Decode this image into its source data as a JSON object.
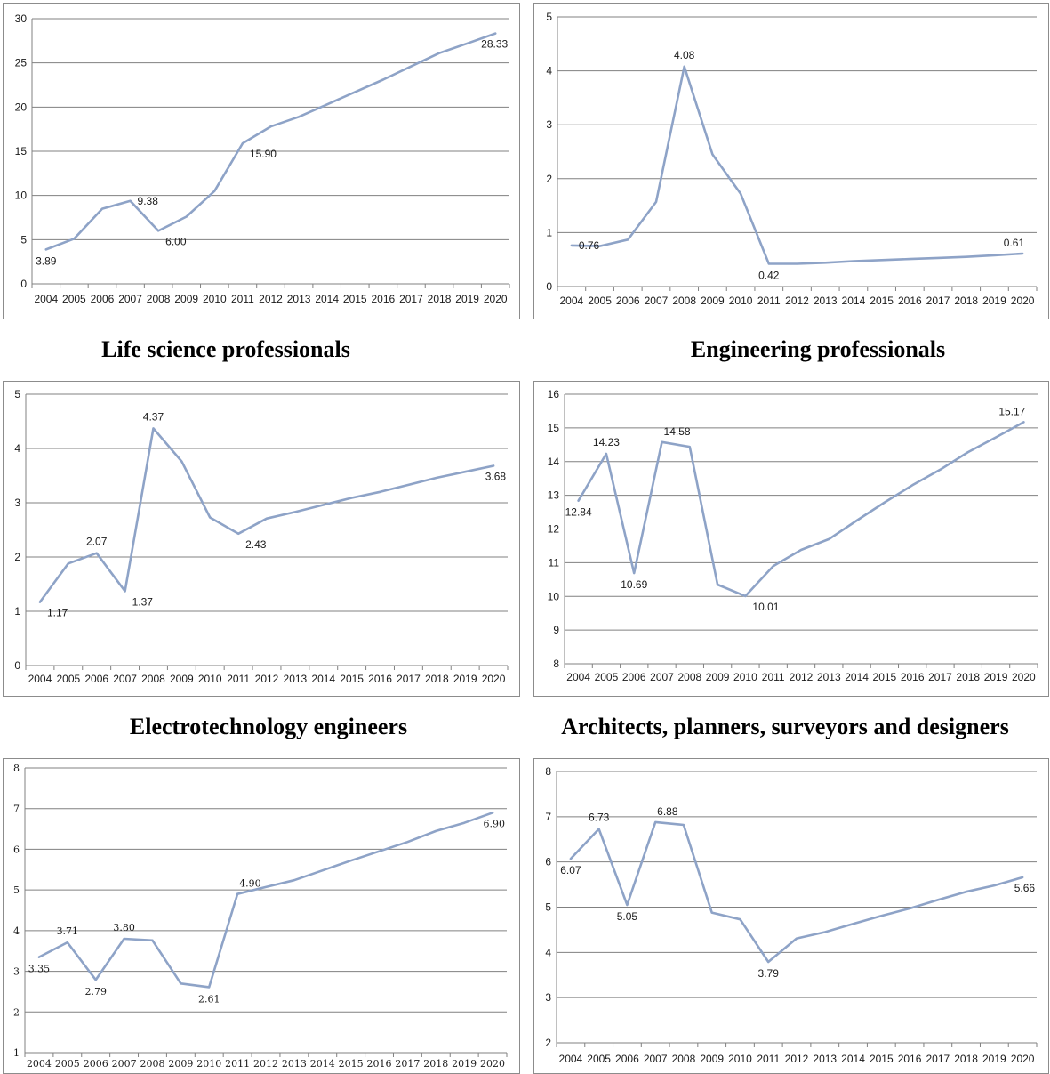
{
  "colors": {
    "line": "#8ea3c7",
    "grid": "#808080",
    "axis": "#808080",
    "border": "#8c8c8c"
  },
  "chart_data": [
    {
      "type": "line",
      "title": "Life science professionals",
      "x": [
        "2004",
        "2005",
        "2006",
        "2007",
        "2008",
        "2009",
        "2010",
        "2011",
        "2012",
        "2013",
        "2014",
        "2015",
        "2016",
        "2017",
        "2018",
        "2019",
        "2020"
      ],
      "series": [
        {
          "values": [
            3.89,
            5.1,
            8.5,
            9.38,
            6.0,
            7.6,
            10.5,
            15.9,
            17.8,
            18.9,
            20.3,
            21.7,
            23.1,
            24.6,
            26.1,
            27.2,
            28.33
          ]
        }
      ],
      "ylim": [
        0,
        30
      ],
      "yticks": [
        0,
        5,
        10,
        15,
        20,
        25,
        30
      ],
      "labels": [
        {
          "i": 0,
          "text": "3.89",
          "pos": "below"
        },
        {
          "i": 3,
          "text": "9.38",
          "pos": "right"
        },
        {
          "i": 4,
          "text": "6.00",
          "pos": "belowright"
        },
        {
          "i": 7,
          "text": "15.90",
          "pos": "belowright"
        },
        {
          "i": 16,
          "text": "28.33",
          "pos": "belowleft"
        }
      ],
      "grid": true,
      "xlabel": "",
      "ylabel": ""
    },
    {
      "type": "line",
      "title": "Engineering professionals",
      "x": [
        "2004",
        "2005",
        "2006",
        "2007",
        "2008",
        "2009",
        "2010",
        "2011",
        "2012",
        "2013",
        "2014",
        "2015",
        "2016",
        "2017",
        "2018",
        "2019",
        "2020"
      ],
      "series": [
        {
          "values": [
            0.76,
            0.75,
            0.87,
            1.57,
            4.08,
            2.45,
            1.72,
            0.42,
            0.42,
            0.44,
            0.47,
            0.49,
            0.51,
            0.53,
            0.55,
            0.58,
            0.61
          ]
        }
      ],
      "ylim": [
        0,
        5
      ],
      "yticks": [
        0,
        1,
        2,
        3,
        4,
        5
      ],
      "labels": [
        {
          "i": 0,
          "text": "0.76",
          "pos": "right"
        },
        {
          "i": 4,
          "text": "4.08",
          "pos": "above"
        },
        {
          "i": 7,
          "text": "0.42",
          "pos": "below"
        },
        {
          "i": 16,
          "text": "0.61",
          "pos": "aboveleft"
        }
      ],
      "grid": true,
      "xlabel": "",
      "ylabel": ""
    },
    {
      "type": "line",
      "title": "Electrotechnology engineers",
      "x": [
        "2004",
        "2005",
        "2006",
        "2007",
        "2008",
        "2009",
        "2010",
        "2011",
        "2012",
        "2013",
        "2014",
        "2015",
        "2016",
        "2017",
        "2018",
        "2019",
        "2020"
      ],
      "series": [
        {
          "values": [
            1.17,
            1.88,
            2.07,
            1.37,
            4.37,
            3.76,
            2.73,
            2.43,
            2.71,
            2.83,
            2.96,
            3.09,
            3.2,
            3.33,
            3.46,
            3.57,
            3.68
          ]
        }
      ],
      "ylim": [
        0,
        5
      ],
      "yticks": [
        0,
        1,
        2,
        3,
        4,
        5
      ],
      "labels": [
        {
          "i": 0,
          "text": "1.17",
          "pos": "belowright"
        },
        {
          "i": 2,
          "text": "2.07",
          "pos": "above"
        },
        {
          "i": 3,
          "text": "1.37",
          "pos": "belowright"
        },
        {
          "i": 4,
          "text": "4.37",
          "pos": "above"
        },
        {
          "i": 7,
          "text": "2.43",
          "pos": "belowright"
        },
        {
          "i": 16,
          "text": "3.68",
          "pos": "belowleft"
        }
      ],
      "grid": true,
      "xlabel": "",
      "ylabel": ""
    },
    {
      "type": "line",
      "title": "Architects, planners, surveyors and designers",
      "x": [
        "2004",
        "2005",
        "2006",
        "2007",
        "2008",
        "2009",
        "2010",
        "2011",
        "2012",
        "2013",
        "2014",
        "2015",
        "2016",
        "2017",
        "2018",
        "2019",
        "2020"
      ],
      "series": [
        {
          "values": [
            12.84,
            14.23,
            10.69,
            14.58,
            14.44,
            10.35,
            10.01,
            10.9,
            11.38,
            11.7,
            12.25,
            12.79,
            13.3,
            13.76,
            14.28,
            14.72,
            15.17
          ]
        }
      ],
      "ylim": [
        8,
        16
      ],
      "yticks": [
        8,
        9,
        10,
        11,
        12,
        13,
        14,
        15,
        16
      ],
      "labels": [
        {
          "i": 0,
          "text": "12.84",
          "pos": "below"
        },
        {
          "i": 1,
          "text": "14.23",
          "pos": "above"
        },
        {
          "i": 2,
          "text": "10.69",
          "pos": "below"
        },
        {
          "i": 3,
          "text": "14.58",
          "pos": "aboveright"
        },
        {
          "i": 6,
          "text": "10.01",
          "pos": "belowright"
        },
        {
          "i": 16,
          "text": "15.17",
          "pos": "aboveleft"
        }
      ],
      "grid": true,
      "xlabel": "",
      "ylabel": ""
    },
    {
      "type": "line",
      "title": "",
      "x": [
        "2004",
        "2005",
        "2006",
        "2007",
        "2008",
        "2009",
        "2010",
        "2011",
        "2012",
        "2013",
        "2014",
        "2015",
        "2016",
        "2017",
        "2018",
        "2019",
        "2020"
      ],
      "series": [
        {
          "values": [
            3.35,
            3.71,
            2.79,
            3.8,
            3.76,
            2.7,
            2.61,
            4.9,
            5.07,
            5.24,
            5.48,
            5.72,
            5.95,
            6.18,
            6.45,
            6.65,
            6.9
          ]
        }
      ],
      "ylim": [
        1,
        8
      ],
      "yticks": [
        1,
        2,
        3,
        4,
        5,
        6,
        7,
        8
      ],
      "labels": [
        {
          "i": 0,
          "text": "3.35",
          "pos": "below"
        },
        {
          "i": 1,
          "text": "3.71",
          "pos": "above"
        },
        {
          "i": 2,
          "text": "2.79",
          "pos": "below"
        },
        {
          "i": 3,
          "text": "3.80",
          "pos": "above"
        },
        {
          "i": 6,
          "text": "2.61",
          "pos": "below"
        },
        {
          "i": 7,
          "text": "4.90",
          "pos": "aboveright"
        },
        {
          "i": 16,
          "text": "6.90",
          "pos": "belowleft"
        }
      ],
      "grid": true,
      "xlabel": "",
      "ylabel": ""
    },
    {
      "type": "line",
      "title": "",
      "x": [
        "2004",
        "2005",
        "2006",
        "2007",
        "2008",
        "2009",
        "2010",
        "2011",
        "2012",
        "2013",
        "2014",
        "2015",
        "2016",
        "2017",
        "2018",
        "2019",
        "2020"
      ],
      "series": [
        {
          "values": [
            6.07,
            6.73,
            5.05,
            6.88,
            6.82,
            4.88,
            4.73,
            3.79,
            4.31,
            4.45,
            4.63,
            4.81,
            4.97,
            5.16,
            5.34,
            5.48,
            5.66
          ]
        }
      ],
      "ylim": [
        2,
        8
      ],
      "yticks": [
        2,
        3,
        4,
        5,
        6,
        7,
        8
      ],
      "labels": [
        {
          "i": 0,
          "text": "6.07",
          "pos": "below"
        },
        {
          "i": 1,
          "text": "6.73",
          "pos": "above"
        },
        {
          "i": 2,
          "text": "5.05",
          "pos": "below"
        },
        {
          "i": 3,
          "text": "6.88",
          "pos": "aboveright"
        },
        {
          "i": 7,
          "text": "3.79",
          "pos": "below"
        },
        {
          "i": 16,
          "text": "5.66",
          "pos": "belowleft"
        }
      ],
      "grid": true,
      "xlabel": "",
      "ylabel": ""
    }
  ]
}
